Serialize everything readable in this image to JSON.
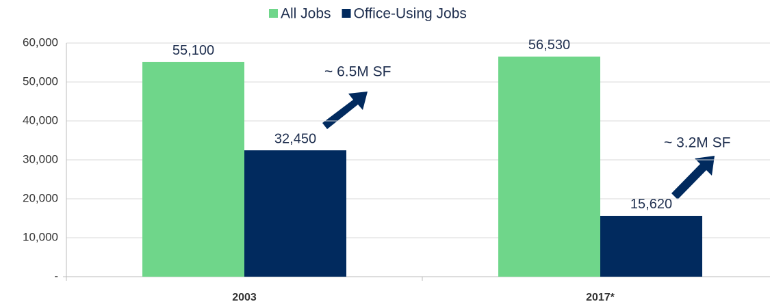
{
  "chart_data": {
    "type": "bar",
    "categories": [
      "2003",
      "2017*"
    ],
    "series": [
      {
        "name": "All Jobs",
        "color": "#6fd68a",
        "values": [
          55100,
          56530
        ],
        "value_labels": [
          "55,100",
          "56,530"
        ]
      },
      {
        "name": "Office-Using Jobs",
        "color": "#012a5e",
        "values": [
          32450,
          15620
        ],
        "value_labels": [
          "32,450",
          "15,620"
        ]
      }
    ],
    "ylim": [
      0,
      60000
    ],
    "yticks": [
      {
        "value": 0,
        "label": "-"
      },
      {
        "value": 10000,
        "label": "10,000"
      },
      {
        "value": 20000,
        "label": "20,000"
      },
      {
        "value": 30000,
        "label": "30,000"
      },
      {
        "value": 40000,
        "label": "40,000"
      },
      {
        "value": 50000,
        "label": "50,000"
      },
      {
        "value": 60000,
        "label": "60,000"
      }
    ],
    "grid": true,
    "legend": "top",
    "annotations": [
      "~ 6.5M SF",
      "~ 3.2M SF"
    ]
  }
}
